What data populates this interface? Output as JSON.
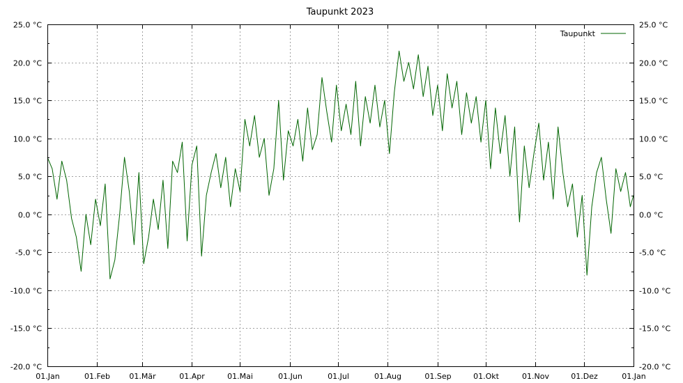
{
  "chart_data": {
    "type": "line",
    "title": "Taupunkt 2023",
    "xlabel": "",
    "ylabel": "",
    "x_range": [
      "2023-01-01",
      "2024-01-01"
    ],
    "ylim": [
      -20,
      25
    ],
    "grid": true,
    "legend_position": "top-right",
    "y_tick_values": [
      -20,
      -15,
      -10,
      -5,
      0,
      5,
      10,
      15,
      20,
      25
    ],
    "y_tick_labels": [
      "-20.0 °C",
      "-15.0 °C",
      "-10.0 °C",
      "-5.0 °C",
      "0.0 °C",
      "5.0 °C",
      "10.0 °C",
      "15.0 °C",
      "20.0 °C",
      "25.0 °C"
    ],
    "x_tick_dates": [
      "2023-01-01",
      "2023-02-01",
      "2023-03-01",
      "2023-04-01",
      "2023-05-01",
      "2023-06-01",
      "2023-07-01",
      "2023-08-01",
      "2023-09-01",
      "2023-10-01",
      "2023-11-01",
      "2023-12-01",
      "2024-01-01"
    ],
    "x_tick_labels": [
      "01.Jan",
      "01.Feb",
      "01.Mär",
      "01.Apr",
      "01.Mai",
      "01.Jun",
      "01.Jul",
      "01.Aug",
      "01.Sep",
      "01.Okt",
      "01.Nov",
      "01.Dez",
      "01.Jan"
    ],
    "series": [
      {
        "name": "Taupunkt",
        "color": "#006400",
        "x": [
          "2023-01-01",
          "2023-01-04",
          "2023-01-07",
          "2023-01-10",
          "2023-01-13",
          "2023-01-16",
          "2023-01-19",
          "2023-01-22",
          "2023-01-25",
          "2023-01-28",
          "2023-01-31",
          "2023-02-03",
          "2023-02-06",
          "2023-02-09",
          "2023-02-12",
          "2023-02-15",
          "2023-02-18",
          "2023-02-21",
          "2023-02-24",
          "2023-02-27",
          "2023-03-02",
          "2023-03-05",
          "2023-03-08",
          "2023-03-11",
          "2023-03-14",
          "2023-03-17",
          "2023-03-20",
          "2023-03-23",
          "2023-03-26",
          "2023-03-29",
          "2023-04-01",
          "2023-04-04",
          "2023-04-07",
          "2023-04-10",
          "2023-04-13",
          "2023-04-16",
          "2023-04-19",
          "2023-04-22",
          "2023-04-25",
          "2023-04-28",
          "2023-05-01",
          "2023-05-04",
          "2023-05-07",
          "2023-05-10",
          "2023-05-13",
          "2023-05-16",
          "2023-05-19",
          "2023-05-22",
          "2023-05-25",
          "2023-05-28",
          "2023-05-31",
          "2023-06-03",
          "2023-06-06",
          "2023-06-09",
          "2023-06-12",
          "2023-06-15",
          "2023-06-18",
          "2023-06-21",
          "2023-06-24",
          "2023-06-27",
          "2023-06-30",
          "2023-07-03",
          "2023-07-06",
          "2023-07-09",
          "2023-07-12",
          "2023-07-15",
          "2023-07-18",
          "2023-07-21",
          "2023-07-24",
          "2023-07-27",
          "2023-07-30",
          "2023-08-02",
          "2023-08-05",
          "2023-08-08",
          "2023-08-11",
          "2023-08-14",
          "2023-08-17",
          "2023-08-20",
          "2023-08-23",
          "2023-08-26",
          "2023-08-29",
          "2023-09-01",
          "2023-09-04",
          "2023-09-07",
          "2023-09-10",
          "2023-09-13",
          "2023-09-16",
          "2023-09-19",
          "2023-09-22",
          "2023-09-25",
          "2023-09-28",
          "2023-10-01",
          "2023-10-04",
          "2023-10-07",
          "2023-10-10",
          "2023-10-13",
          "2023-10-16",
          "2023-10-19",
          "2023-10-22",
          "2023-10-25",
          "2023-10-28",
          "2023-10-31",
          "2023-11-03",
          "2023-11-06",
          "2023-11-09",
          "2023-11-12",
          "2023-11-15",
          "2023-11-18",
          "2023-11-21",
          "2023-11-24",
          "2023-11-27",
          "2023-11-30",
          "2023-12-03",
          "2023-12-06",
          "2023-12-09",
          "2023-12-12",
          "2023-12-15",
          "2023-12-18",
          "2023-12-21",
          "2023-12-24",
          "2023-12-27",
          "2023-12-30",
          "2024-01-01"
        ],
        "y": [
          7.5,
          6.0,
          2.0,
          7.0,
          4.5,
          -0.5,
          -3.0,
          -7.5,
          0.0,
          -4.0,
          2.0,
          -1.5,
          4.0,
          -8.5,
          -6.0,
          0.0,
          7.5,
          3.0,
          -4.0,
          5.5,
          -6.5,
          -3.0,
          2.0,
          -2.0,
          4.5,
          -4.5,
          7.0,
          5.5,
          9.5,
          -3.5,
          6.5,
          9.0,
          -5.5,
          2.5,
          5.5,
          8.0,
          3.5,
          7.5,
          1.0,
          6.0,
          3.0,
          12.5,
          9.0,
          13.0,
          7.5,
          10.0,
          2.5,
          6.0,
          15.0,
          4.5,
          11.0,
          9.0,
          12.5,
          7.0,
          14.0,
          8.5,
          10.5,
          18.0,
          13.5,
          9.5,
          17.0,
          11.0,
          14.5,
          10.5,
          17.5,
          9.0,
          15.5,
          12.0,
          17.0,
          11.5,
          15.0,
          8.0,
          16.0,
          21.5,
          17.5,
          20.0,
          16.5,
          21.0,
          15.5,
          19.5,
          13.0,
          17.0,
          11.0,
          18.5,
          14.0,
          17.5,
          10.5,
          16.0,
          12.0,
          15.5,
          9.5,
          15.0,
          6.0,
          14.0,
          8.0,
          13.0,
          5.0,
          11.5,
          -1.0,
          9.0,
          3.5,
          8.0,
          12.0,
          4.5,
          9.5,
          2.0,
          11.5,
          5.5,
          1.0,
          4.0,
          -3.0,
          2.5,
          -8.0,
          1.0,
          5.5,
          7.5,
          2.0,
          -2.5,
          6.0,
          3.0,
          5.5,
          1.0,
          2.5
        ]
      }
    ]
  }
}
